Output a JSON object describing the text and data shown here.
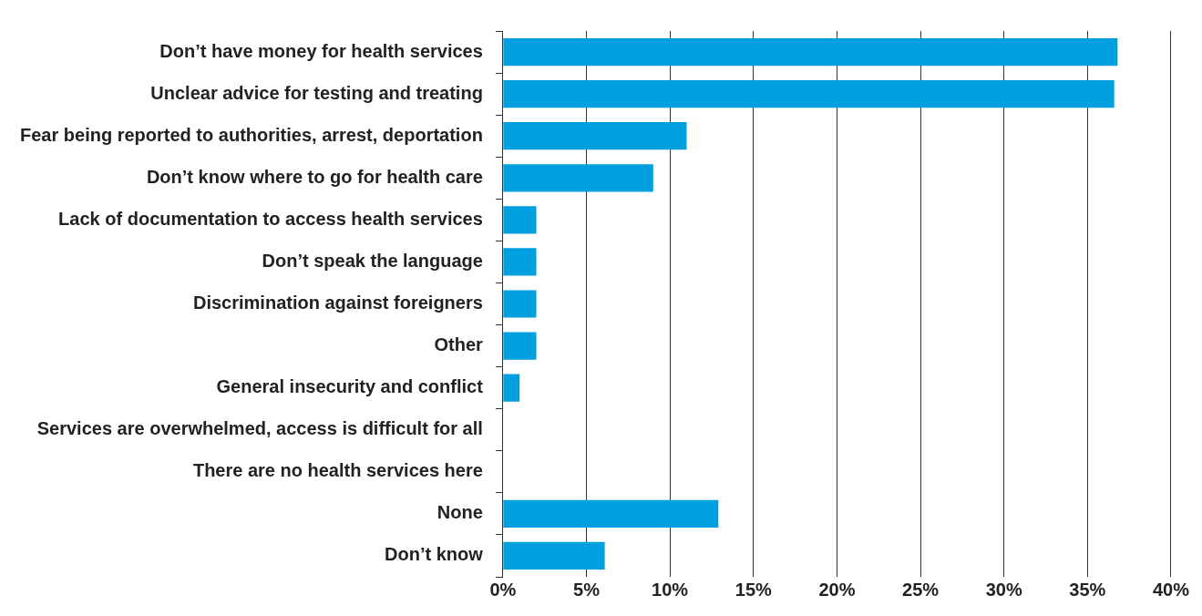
{
  "chart_data": {
    "type": "bar",
    "orientation": "horizontal",
    "categories": [
      "Don’t have money for health services",
      "Unclear advice for testing and treating",
      "Fear being reported to authorities, arrest, deportation",
      "Don’t know where to go for health care",
      "Lack of documentation to access health services",
      "Don’t speak the language",
      "Discrimination against foreigners",
      "Other",
      "General insecurity and conflict",
      "Services are overwhelmed, access is difficult for all",
      "There are no health services here",
      "None",
      "Don’t know"
    ],
    "values": [
      36.8,
      36.6,
      11,
      9,
      2,
      2,
      2,
      2,
      1,
      0,
      0,
      12.9,
      6.1
    ],
    "color": "#009fdf",
    "xlim": [
      0,
      40
    ],
    "xticks": [
      {
        "value": 0,
        "label": "0%"
      },
      {
        "value": 5,
        "label": "5%"
      },
      {
        "value": 10,
        "label": "10%"
      },
      {
        "value": 15,
        "label": "15%"
      },
      {
        "value": 20,
        "label": "20%"
      },
      {
        "value": 25,
        "label": "25%"
      },
      {
        "value": 30,
        "label": "30%"
      },
      {
        "value": 35,
        "label": "35%"
      },
      {
        "value": 40,
        "label": "40%"
      }
    ],
    "grid": "x",
    "legend": false
  }
}
